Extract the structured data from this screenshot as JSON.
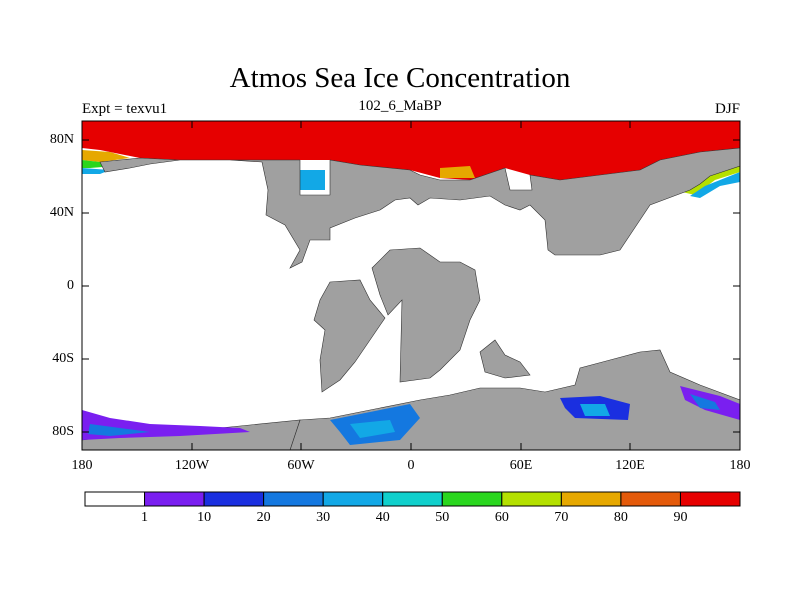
{
  "figure": {
    "title": "Atmos Sea Ice Concentration",
    "left_label": "Expt = texvu1",
    "center_label": "102_6_MaBP",
    "right_label": "DJF"
  },
  "map": {
    "lat_ticks": [
      "80N",
      "40N",
      "0",
      "40S",
      "80S"
    ],
    "lon_ticks": [
      "180",
      "120W",
      "60W",
      "0",
      "60E",
      "120E",
      "180"
    ],
    "land_color": "#a0a0a0",
    "ocean_color": "#ffffff"
  },
  "colorbar": {
    "labels": [
      "1",
      "10",
      "20",
      "30",
      "40",
      "50",
      "60",
      "70",
      "80",
      "90"
    ],
    "colors": [
      "#ffffff",
      "#7a1ff0",
      "#1a2fe0",
      "#1478e0",
      "#12a8e6",
      "#10d0cc",
      "#2ad61e",
      "#b4e000",
      "#e6a800",
      "#e45a0a",
      "#e60000"
    ]
  }
}
